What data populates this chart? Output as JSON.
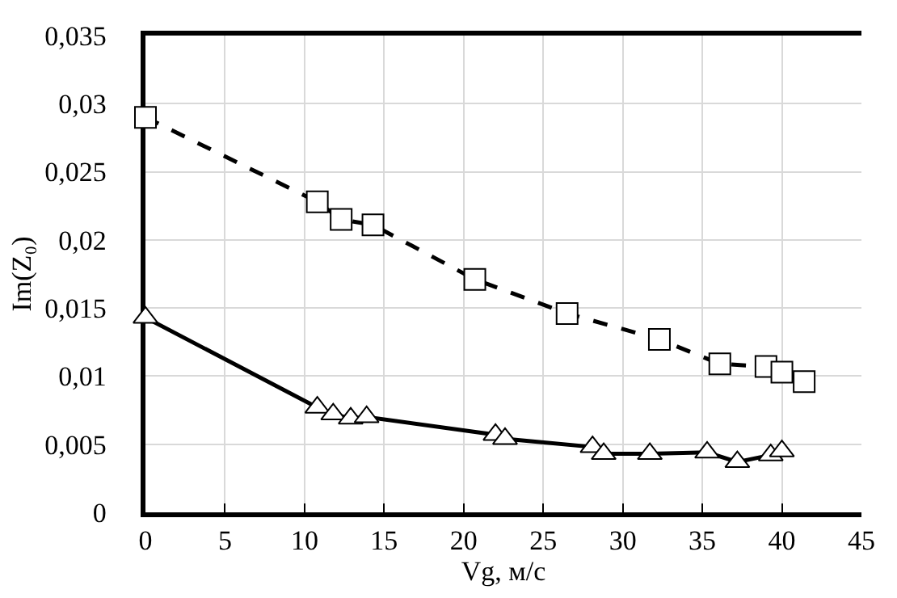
{
  "chart_data": {
    "type": "line",
    "xlabel": "Vg, м/с",
    "ylabel": "Im(Z₀)",
    "xlim": [
      0,
      45
    ],
    "xticks": [
      0,
      5,
      10,
      15,
      20,
      25,
      30,
      35,
      40,
      45
    ],
    "ylim": [
      0,
      0.035
    ],
    "yticks": [
      {
        "value": 0,
        "label": "0"
      },
      {
        "value": 0.005,
        "label": "0,005"
      },
      {
        "value": 0.01,
        "label": "0,01"
      },
      {
        "value": 0.015,
        "label": "0,015"
      },
      {
        "value": 0.02,
        "label": "0,02"
      },
      {
        "value": 0.025,
        "label": "0,025"
      },
      {
        "value": 0.03,
        "label": "0,03"
      },
      {
        "value": 0.035,
        "label": "0,035"
      }
    ],
    "grid": true,
    "legend": false,
    "series": [
      {
        "color": "#000000",
        "line_style": "dashed",
        "marker": "square",
        "x": [
          0,
          10.8,
          12.3,
          14.3,
          20.7,
          26.5,
          32.3,
          36.1,
          39.0,
          40.0,
          41.4
        ],
        "values": [
          0.029,
          0.0228,
          0.0215,
          0.0211,
          0.0171,
          0.0146,
          0.0127,
          0.0109,
          0.0107,
          0.0103,
          0.0096
        ]
      },
      {
        "color": "#000000",
        "line_style": "solid",
        "marker": "triangle",
        "x": [
          0,
          10.8,
          11.8,
          12.9,
          13.9,
          22.0,
          22.6,
          28.1,
          28.8,
          31.7,
          35.3,
          37.2,
          39.3,
          40.0
        ],
        "values": [
          0.0143,
          0.0077,
          0.0072,
          0.0069,
          0.007,
          0.0057,
          0.0054,
          0.0048,
          0.0043,
          0.0043,
          0.0044,
          0.0037,
          0.0042,
          0.0045
        ]
      }
    ]
  }
}
